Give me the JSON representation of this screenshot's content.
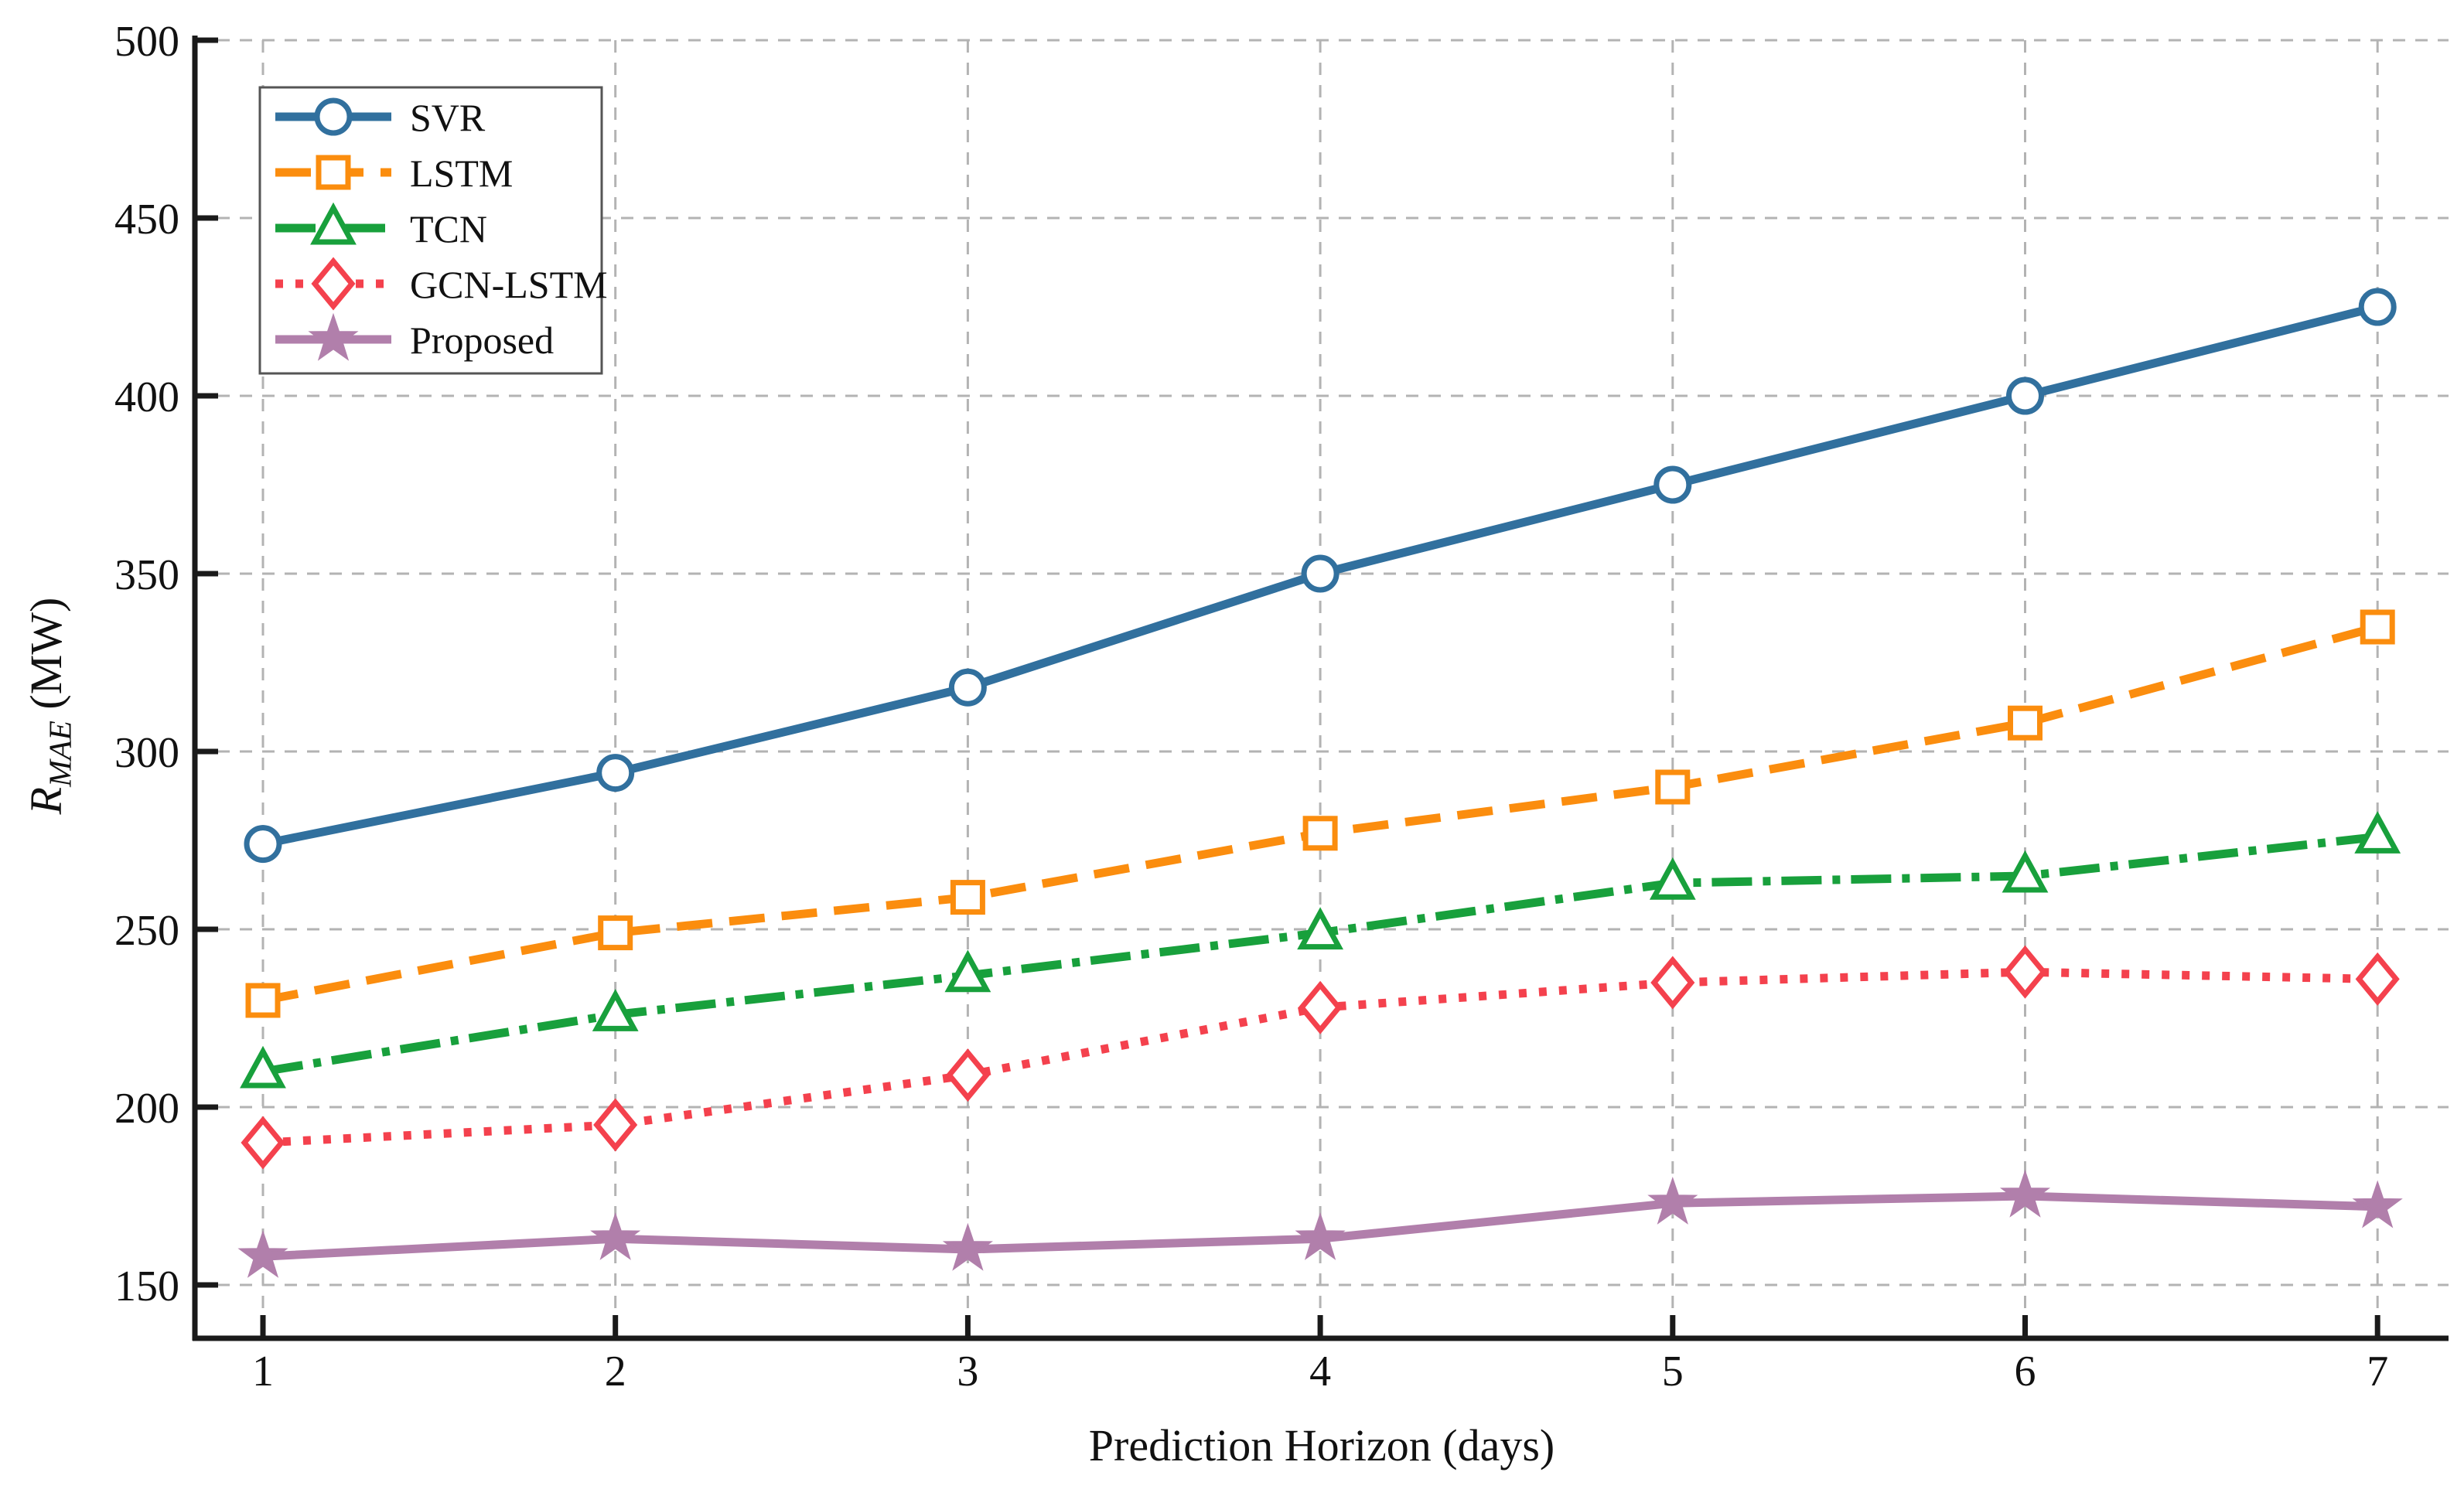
{
  "chart_data": {
    "type": "line",
    "title": "",
    "xlabel": "Prediction Horizon (days)",
    "ylabel": {
      "symbol": "R",
      "subscript": "MAE",
      "unit": " (MW)"
    },
    "x": [
      1,
      2,
      3,
      4,
      5,
      6,
      7
    ],
    "xticks": [
      "1",
      "2",
      "3",
      "4",
      "5",
      "6",
      "7"
    ],
    "yticks": [
      "150",
      "200",
      "250",
      "300",
      "350",
      "400",
      "450",
      "500"
    ],
    "ytick_values": [
      150,
      200,
      250,
      300,
      350,
      400,
      450,
      500
    ],
    "xlim": [
      0.81,
      7.2
    ],
    "ylim": [
      135,
      502
    ],
    "grid": true,
    "grid_style": "dashed",
    "legend_position": "upper-left",
    "series": [
      {
        "name": "SVR",
        "color": "#31709e",
        "linestyle": "solid",
        "marker": "circle",
        "marker_filled": false,
        "values": [
          274,
          294,
          318,
          350,
          375,
          400,
          425
        ]
      },
      {
        "name": "LSTM",
        "color": "#fb8d0e",
        "linestyle": "dashed",
        "marker": "square",
        "marker_filled": false,
        "values": [
          230,
          249,
          259,
          277,
          290,
          308,
          335
        ]
      },
      {
        "name": "TCN",
        "color": "#18a03c",
        "linestyle": "dashdot",
        "marker": "triangle",
        "marker_filled": false,
        "values": [
          210,
          226,
          237,
          249,
          263,
          265,
          276
        ]
      },
      {
        "name": "GCN-LSTM",
        "color": "#f4414d",
        "linestyle": "dotted",
        "marker": "diamond",
        "marker_filled": false,
        "values": [
          190,
          195,
          209,
          228,
          235,
          238,
          236
        ]
      },
      {
        "name": "Proposed",
        "color": "#b17fab",
        "linestyle": "solid",
        "marker": "star",
        "marker_filled": true,
        "values": [
          158,
          163,
          160,
          163,
          173,
          175,
          172
        ]
      }
    ]
  },
  "colors": {
    "background": "#ffffff",
    "grid": "#b3b3b3",
    "axis": "#1a1a1a",
    "text": "#111111",
    "legend_border": "#555555",
    "legend_background": "#ffffff"
  }
}
